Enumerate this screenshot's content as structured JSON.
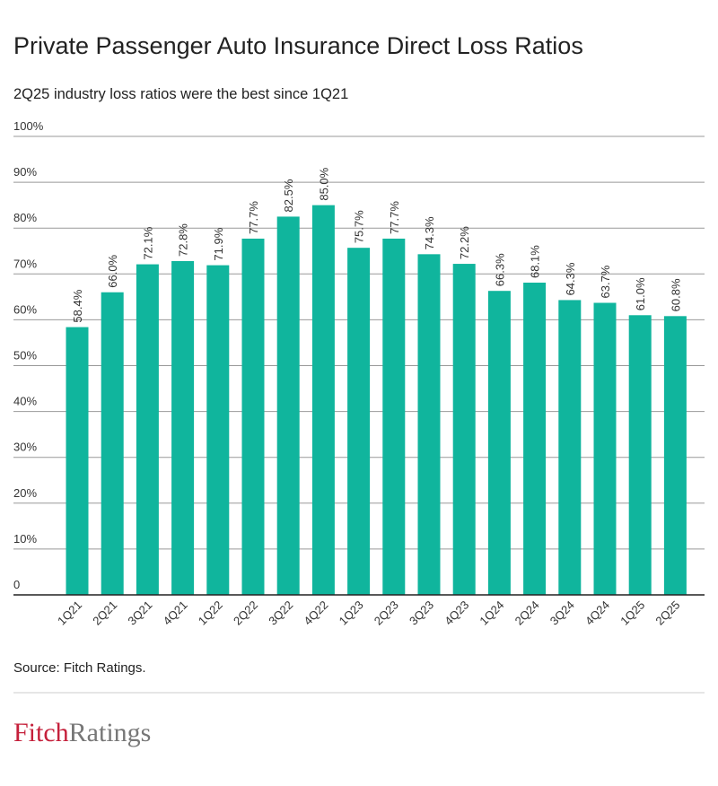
{
  "chart_data": {
    "type": "bar",
    "title": "Private Passenger Auto Insurance Direct Loss Ratios",
    "subtitle": "2Q25 industry loss ratios were the best since 1Q21",
    "categories": [
      "1Q21",
      "2Q21",
      "3Q21",
      "4Q21",
      "1Q22",
      "2Q22",
      "3Q22",
      "4Q22",
      "1Q23",
      "2Q23",
      "3Q23",
      "4Q23",
      "1Q24",
      "2Q24",
      "3Q24",
      "4Q24",
      "1Q25",
      "2Q25"
    ],
    "values": [
      58.4,
      66.0,
      72.1,
      72.8,
      71.9,
      77.7,
      82.5,
      85.0,
      75.7,
      77.7,
      74.3,
      72.2,
      66.3,
      68.1,
      64.3,
      63.7,
      61.0,
      60.8
    ],
    "value_labels": [
      "58.4%",
      "66.0%",
      "72.1%",
      "72.8%",
      "71.9%",
      "77.7%",
      "82.5%",
      "85.0%",
      "75.7%",
      "77.7%",
      "74.3%",
      "72.2%",
      "66.3%",
      "68.1%",
      "64.3%",
      "63.7%",
      "61.0%",
      "60.8%"
    ],
    "color": "#10b59d",
    "ylim": [
      0,
      100
    ],
    "yticks": [
      0,
      {
        "value": 10,
        "label": "10%"
      },
      {
        "value": 20,
        "label": "20%"
      },
      {
        "value": 30,
        "label": "30%"
      },
      {
        "value": 40,
        "label": "40%"
      },
      {
        "value": 50,
        "label": "50%"
      },
      {
        "value": 60,
        "label": "60%"
      },
      {
        "value": 70,
        "label": "70%"
      },
      {
        "value": 80,
        "label": "80%"
      },
      {
        "value": 90,
        "label": "90%"
      },
      {
        "value": 100,
        "label": "100%"
      }
    ],
    "grid": true,
    "source": "Source: Fitch Ratings."
  },
  "logo": {
    "first": "Fitch",
    "second": "Ratings"
  }
}
